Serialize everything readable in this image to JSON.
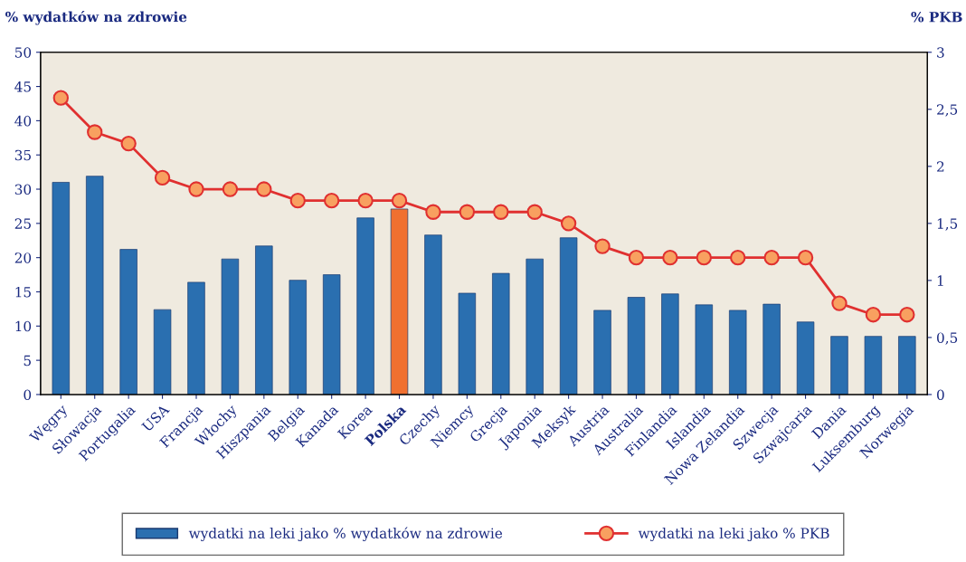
{
  "chart_data": {
    "type": "bar",
    "categories": [
      "Węgry",
      "Słowacja",
      "Portugalia",
      "USA",
      "Francja",
      "Włochy",
      "Hiszpania",
      "Belgia",
      "Kanada",
      "Korea",
      "Polska",
      "Czechy",
      "Niemcy",
      "Grecja",
      "Japonia",
      "Meksyk",
      "Austria",
      "Australia",
      "Finlandia",
      "Islandia",
      "Nowa Zelandia",
      "Szwecja",
      "Szwajcaria",
      "Dania",
      "Luksemburg",
      "Norwegia"
    ],
    "ylabel": "% wydatków na zdrowie",
    "y2label": "% PKB",
    "ylim": [
      0,
      50
    ],
    "yticks": [
      0,
      5,
      10,
      15,
      20,
      25,
      30,
      35,
      40,
      45,
      50
    ],
    "y2lim": [
      0,
      3
    ],
    "y2ticks": [
      0,
      {
        "value": 0.5,
        "label": "0,5"
      },
      1,
      {
        "value": 1.5,
        "label": "1,5"
      },
      2,
      {
        "value": 2.5,
        "label": "2,5"
      },
      3
    ],
    "legend": "bottom",
    "grid": false,
    "marker": "circle",
    "line_style": "solid",
    "series": [
      {
        "name": "wydatki na leki jako % wydatków na zdrowie",
        "color": "#2a6fb0",
        "colors": [
          "#2a6fb0",
          "#2a6fb0",
          "#2a6fb0",
          "#2a6fb0",
          "#2a6fb0",
          "#2a6fb0",
          "#2a6fb0",
          "#2a6fb0",
          "#2a6fb0",
          "#2a6fb0",
          "#f07030",
          "#2a6fb0",
          "#2a6fb0",
          "#2a6fb0",
          "#2a6fb0",
          "#2a6fb0",
          "#2a6fb0",
          "#2a6fb0",
          "#2a6fb0",
          "#2a6fb0",
          "#2a6fb0",
          "#2a6fb0",
          "#2a6fb0",
          "#2a6fb0",
          "#2a6fb0",
          "#2a6fb0"
        ],
        "values": [
          31,
          31.9,
          21.2,
          12.4,
          16.4,
          19.8,
          21.7,
          16.7,
          17.5,
          25.8,
          27.1,
          23.3,
          14.8,
          17.7,
          19.8,
          22.9,
          12.3,
          14.2,
          14.7,
          13.1,
          12.3,
          13.2,
          10.6,
          8.5,
          8.5,
          8.5
        ]
      },
      {
        "name": "wydatki na leki jako % PKB",
        "type": "line",
        "axis": "y2",
        "color": "#e03030",
        "values": [
          2.6,
          2.3,
          2.2,
          1.9,
          1.8,
          1.8,
          1.8,
          1.7,
          1.7,
          1.7,
          1.7,
          1.6,
          1.6,
          1.6,
          1.6,
          1.5,
          1.3,
          1.2,
          1.2,
          1.2,
          1.2,
          1.2,
          1.2,
          0.8,
          0.7,
          0.7
        ]
      }
    ]
  }
}
